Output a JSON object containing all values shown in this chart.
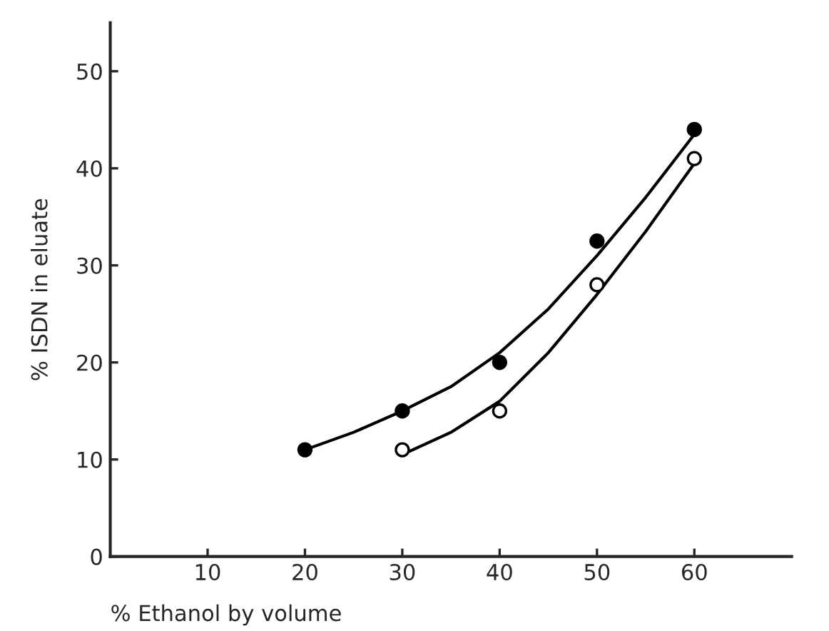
{
  "chart_data": {
    "type": "scatter",
    "xlabel": "% Ethanol by volume",
    "ylabel": "% ISDN in eluate",
    "series": [
      {
        "color": "#000000",
        "marker": "circle",
        "x": [
          20,
          30,
          40,
          50,
          60
        ],
        "values": [
          11,
          15,
          20,
          32.5,
          44
        ]
      },
      {
        "color": "#ffffff",
        "marker": "circle",
        "x": [
          30,
          40,
          50,
          60
        ],
        "values": [
          11,
          15,
          28,
          41
        ]
      },
      {
        "type": "line",
        "color": "#000000",
        "marker": "none",
        "line_style": "solid",
        "x": [
          20,
          25,
          30,
          35,
          40,
          45,
          50,
          55,
          60
        ],
        "values": [
          11,
          12.8,
          15,
          17.5,
          21,
          25.5,
          31,
          37,
          43.5
        ]
      },
      {
        "type": "line",
        "color": "#000000",
        "marker": "none",
        "line_style": "solid",
        "x": [
          30,
          35,
          40,
          45,
          50,
          55,
          60
        ],
        "values": [
          10.5,
          12.8,
          16,
          21,
          27,
          33.5,
          40.5
        ]
      }
    ],
    "xlim": [
      0,
      70
    ],
    "ylim": [
      0,
      55
    ],
    "xticks": [
      10,
      20,
      30,
      40,
      50,
      60
    ],
    "yticks": [
      0,
      10,
      20,
      30,
      40,
      50
    ],
    "grid": false,
    "legend": false
  }
}
